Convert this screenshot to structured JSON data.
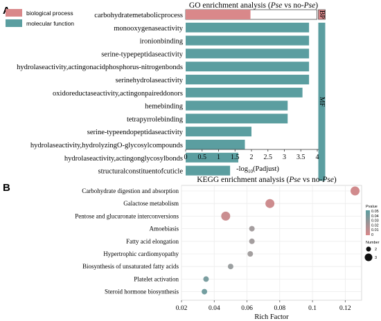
{
  "panel_a_letter": "A",
  "panel_b_letter": "B",
  "chart_data": [
    {
      "type": "bar",
      "orientation": "horizontal",
      "title_prefix": "GO enrichment analysis (",
      "title_italic_1": "Pse",
      "title_mid": " vs no-",
      "title_italic_2": "Pse",
      "title_suffix": ")",
      "xlabel_prefix": "-log",
      "xlabel_sub": "10",
      "xlabel_suffix": "(Padjust)",
      "xlim": [
        0,
        4.2
      ],
      "xticks": [
        "0",
        "0.5",
        "1",
        "1.5",
        "2",
        "2.5",
        "3",
        "3.5",
        "4"
      ],
      "categories": [
        "carbohydratemetabolicprocess",
        "monooxygenaseactivity",
        "ironionbinding",
        "serine-typepeptidaseactivity",
        "hydrolaseactivity,actingonacidphosphorus-nitrogenbonds",
        "serinehydrolaseactivity",
        "oxidoreductaseactivity,actingonpaireddonors",
        "hemebinding",
        "tetrapyrrolebinding",
        "serine-typeendopeptidaseactivity",
        "hydrolaseactivity,hydrolyzingO-glycosylcompounds",
        "hydrolaseactivity,actingonglycosylbonds",
        "structuralconstituentofcuticle"
      ],
      "values": [
        1.97,
        3.75,
        3.75,
        3.75,
        3.75,
        3.75,
        3.55,
        3.1,
        3.1,
        2.0,
        1.8,
        1.6,
        1.35
      ],
      "groups": [
        "BP",
        "MF",
        "MF",
        "MF",
        "MF",
        "MF",
        "MF",
        "MF",
        "MF",
        "MF",
        "MF",
        "MF",
        "MF"
      ],
      "group_labels": [
        "BP",
        "MF"
      ],
      "legend": [
        "biological process",
        "molecular function"
      ],
      "colors": {
        "biological process": "#d9888a",
        "molecular function": "#5b9ea0"
      },
      "legend_position": "top-left"
    },
    {
      "type": "scatter",
      "title_prefix": "KEGG enrichment analysis (",
      "title_italic_1": "Pse",
      "title_mid": " vs no-",
      "title_italic_2": "Pse",
      "title_suffix": ")",
      "xlabel": "Rich Factor",
      "xlim": [
        0.02,
        0.13
      ],
      "xticks": [
        "0.02",
        "0.04",
        "0.06",
        "0.08",
        "0.1",
        "0.12"
      ],
      "grid": true,
      "categories": [
        "Carbohydrate digestion and absorption",
        "Galactose metabolism",
        "Pentose and glucuronate interconversions",
        "Amoebiasis",
        "Fatty acid elongation",
        "Hypertrophic cardiomyopathy",
        "Biosynthesis of unsaturated fatty acids",
        "Platelet activation",
        "Steroid hormone biosynthesis"
      ],
      "x": [
        0.126,
        0.074,
        0.047,
        0.063,
        0.063,
        0.062,
        0.05,
        0.035,
        0.034
      ],
      "pvalue": [
        0.002,
        0.003,
        0.004,
        0.022,
        0.023,
        0.024,
        0.03,
        0.043,
        0.045
      ],
      "number": [
        3,
        3,
        3,
        2,
        2,
        2,
        2,
        2,
        2
      ],
      "pvalue_legend_title": "Pvalue",
      "pvalue_ticks": [
        "0.05",
        "0.04",
        "0.03",
        "0.02",
        "0.01",
        "0"
      ],
      "number_legend_title": "Number",
      "number_legend_values": [
        "2",
        "3"
      ],
      "legend_position": "right",
      "color_low": "#d9888a",
      "color_high": "#5b9ea0"
    }
  ]
}
